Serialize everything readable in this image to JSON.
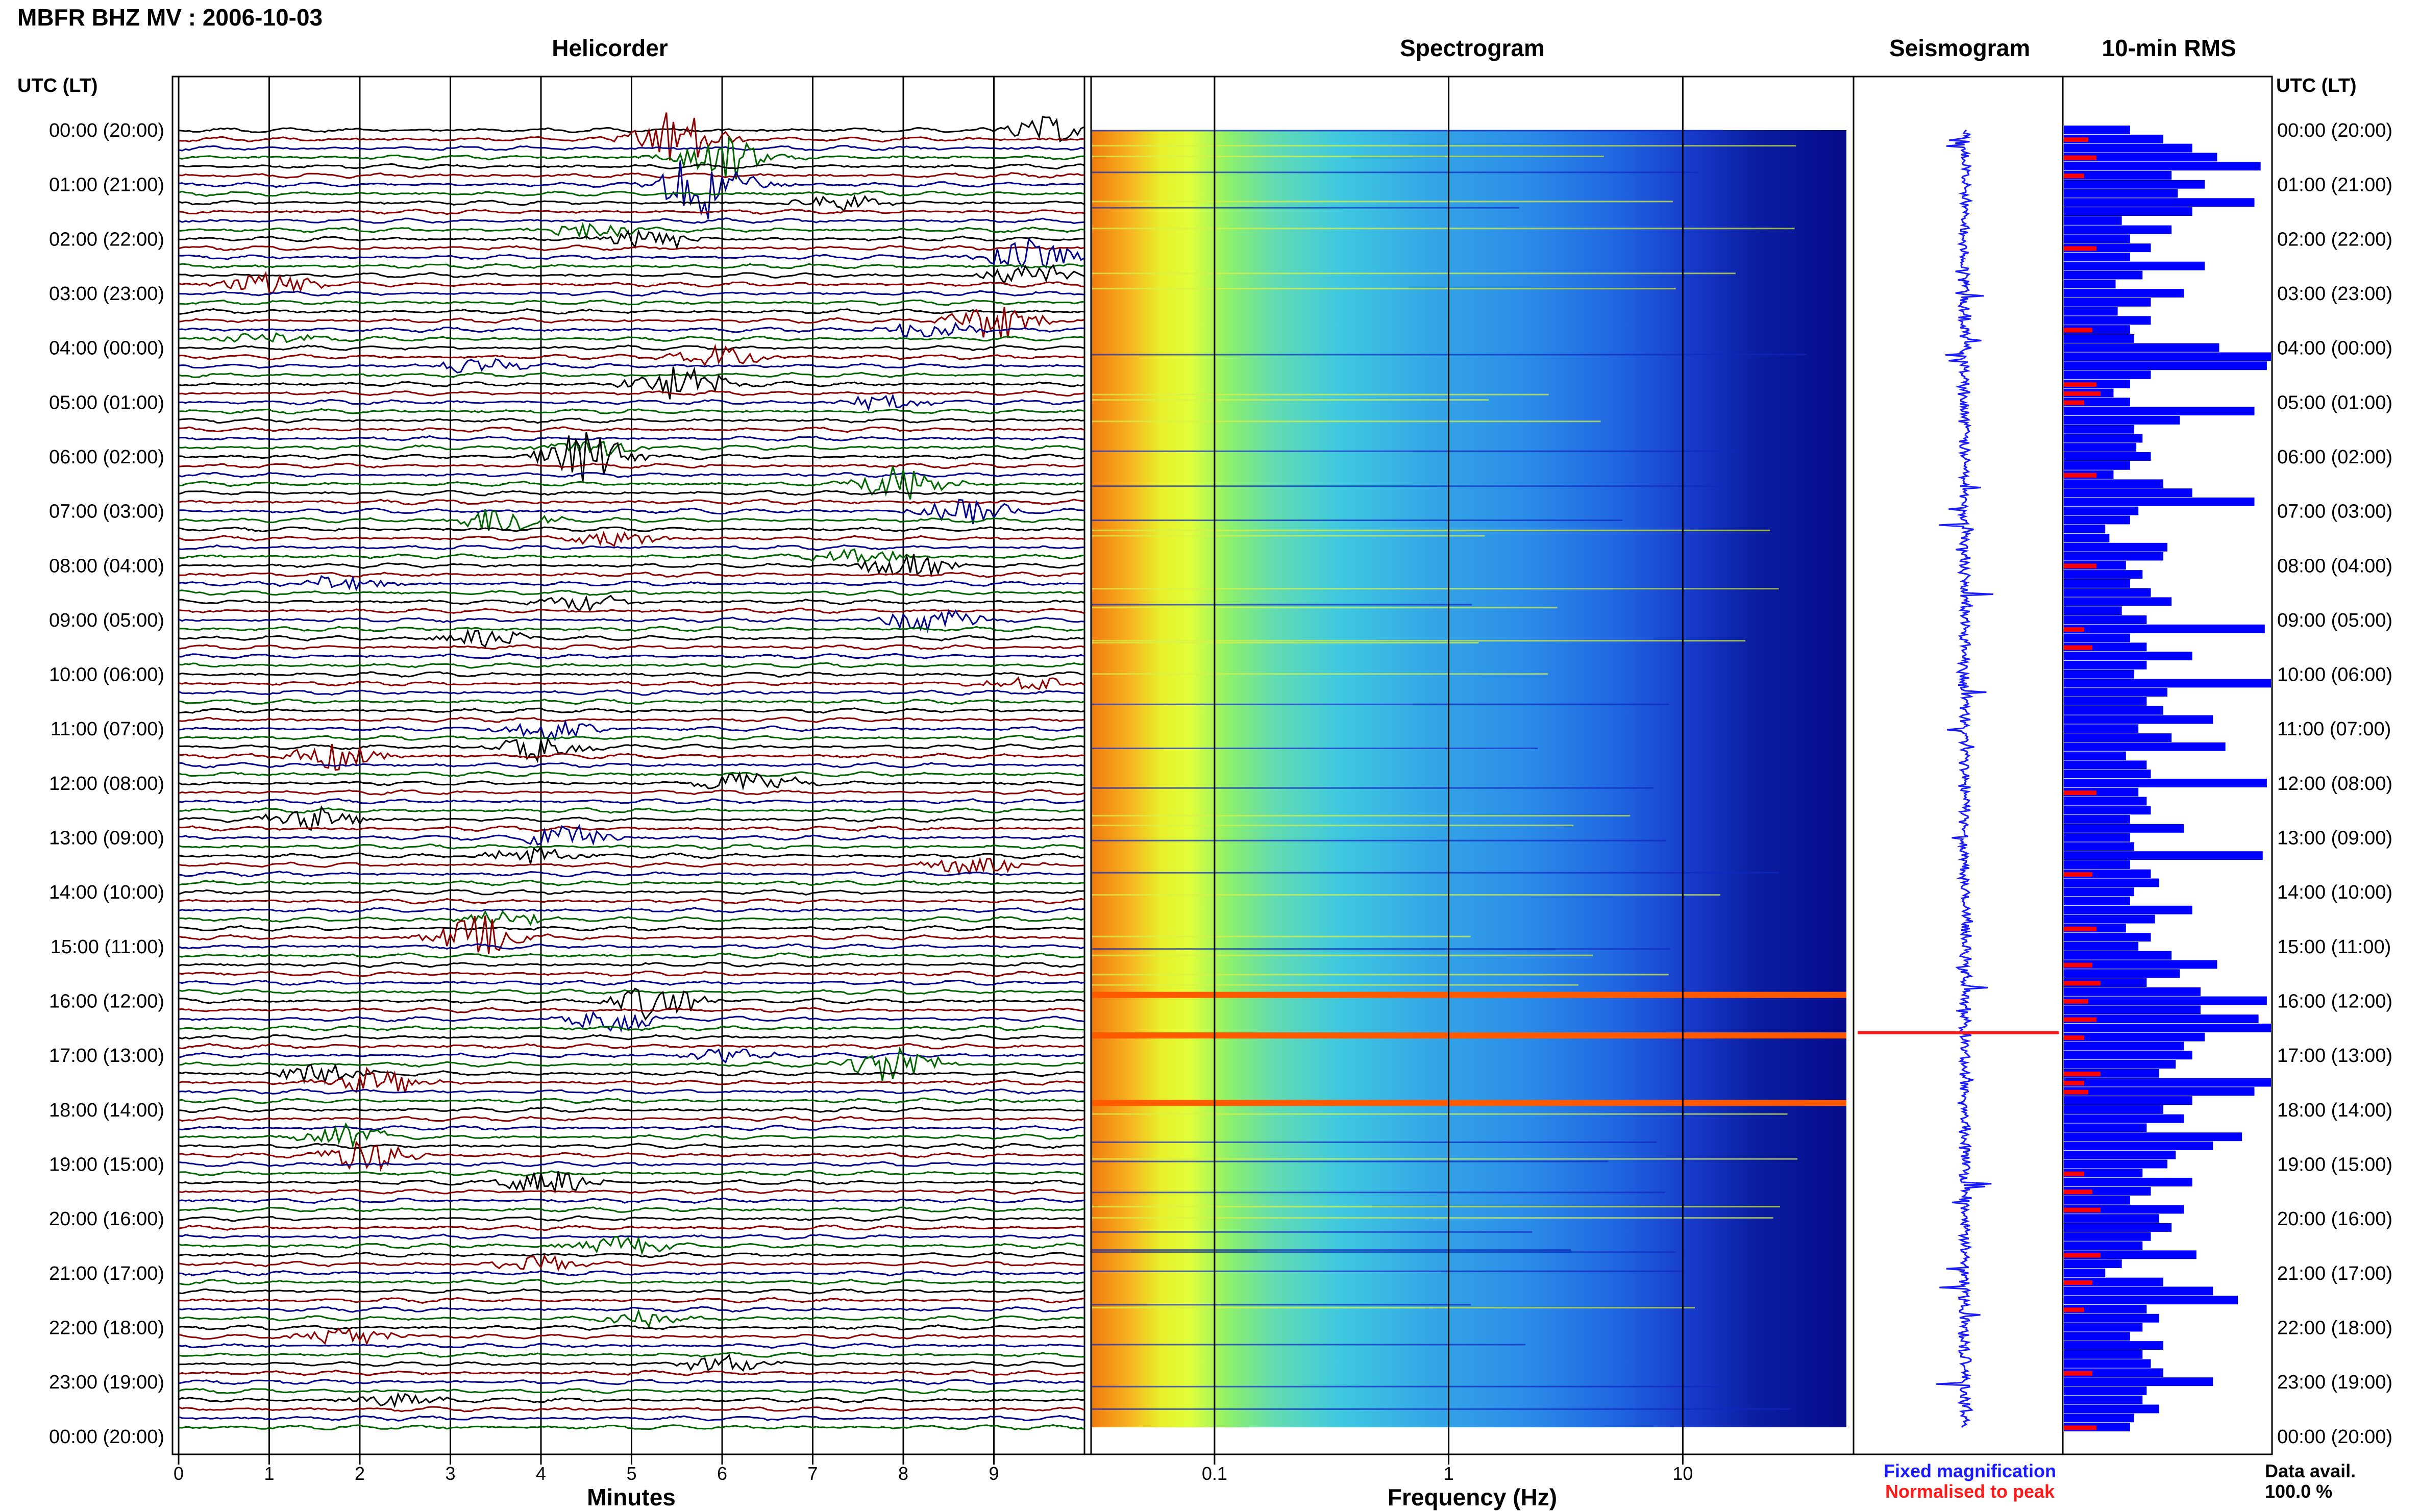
{
  "title": "MBFR BHZ MV : 2006-10-03",
  "panel_titles": {
    "helicorder": "Helicorder",
    "spectrogram": "Spectrogram",
    "seismogram": "Seismogram",
    "rms": "10-min RMS"
  },
  "axis_header_left": "UTC (LT)",
  "axis_header_right": "UTC (LT)",
  "time_labels": [
    "00:00 (20:00)",
    "01:00 (21:00)",
    "02:00 (22:00)",
    "03:00 (23:00)",
    "04:00 (00:00)",
    "05:00 (01:00)",
    "06:00 (02:00)",
    "07:00 (03:00)",
    "08:00 (04:00)",
    "09:00 (05:00)",
    "10:00 (06:00)",
    "11:00 (07:00)",
    "12:00 (08:00)",
    "13:00 (09:00)",
    "14:00 (10:00)",
    "15:00 (11:00)",
    "16:00 (12:00)",
    "17:00 (13:00)",
    "18:00 (14:00)",
    "19:00 (15:00)",
    "20:00 (16:00)",
    "21:00 (17:00)",
    "22:00 (18:00)",
    "23:00 (19:00)",
    "00:00 (20:00)"
  ],
  "minutes_axis": {
    "label": "Minutes",
    "ticks": [
      "0",
      "1",
      "2",
      "3",
      "4",
      "5",
      "6",
      "7",
      "8",
      "9"
    ]
  },
  "frequency_axis": {
    "label": "Frequency (Hz)",
    "ticks": [
      "0.1",
      "1",
      "10"
    ]
  },
  "legend": {
    "fixed": "Fixed magnification",
    "normalised": "Normalised to peak",
    "fixed_color": "#1a1aff",
    "normalised_color": "#ff1a1a"
  },
  "data_avail": {
    "label": "Data avail.",
    "value": "100.0 %"
  },
  "colors": {
    "trace_colors": [
      "#000000",
      "#8b0000",
      "#00008b",
      "#006400"
    ],
    "rms_blue": "#0000ff",
    "rms_red": "#ff0000"
  },
  "chart_data": {
    "type": "heatmap",
    "description_note": "",
    "helicorder": {
      "x_range_minutes": [
        0,
        10
      ],
      "rows_per_hour": 6,
      "total_rows": 144,
      "events": [
        {
          "row": 0,
          "minute": 9.6,
          "amp": 1.6
        },
        {
          "row": 1,
          "minute": 5.5,
          "amp": 3.5
        },
        {
          "row": 3,
          "minute": 6.0,
          "amp": 3.0
        },
        {
          "row": 6,
          "minute": 5.8,
          "amp": 4.2
        },
        {
          "row": 8,
          "minute": 7.3,
          "amp": 1.0
        },
        {
          "row": 11,
          "minute": 4.5,
          "amp": 1.2
        },
        {
          "row": 12,
          "minute": 5.2,
          "amp": 1.4
        },
        {
          "row": 14,
          "minute": 9.4,
          "amp": 2.2
        },
        {
          "row": 16,
          "minute": 9.4,
          "amp": 1.6
        },
        {
          "row": 17,
          "minute": 1.0,
          "amp": 1.6
        },
        {
          "row": 21,
          "minute": 9.0,
          "amp": 2.4
        },
        {
          "row": 22,
          "minute": 8.3,
          "amp": 1.4
        },
        {
          "row": 23,
          "minute": 1.0,
          "amp": 0.8
        },
        {
          "row": 25,
          "minute": 6.0,
          "amp": 1.4
        },
        {
          "row": 26,
          "minute": 3.3,
          "amp": 1.0
        },
        {
          "row": 28,
          "minute": 5.5,
          "amp": 2.4
        },
        {
          "row": 30,
          "minute": 7.8,
          "amp": 0.9
        },
        {
          "row": 35,
          "minute": 4.6,
          "amp": 1.2
        },
        {
          "row": 36,
          "minute": 4.5,
          "amp": 3.2
        },
        {
          "row": 39,
          "minute": 8.0,
          "amp": 2.2
        },
        {
          "row": 42,
          "minute": 8.7,
          "amp": 1.6
        },
        {
          "row": 43,
          "minute": 3.6,
          "amp": 2.0
        },
        {
          "row": 45,
          "minute": 4.8,
          "amp": 1.0
        },
        {
          "row": 47,
          "minute": 7.5,
          "amp": 1.0
        },
        {
          "row": 48,
          "minute": 8.0,
          "amp": 1.6
        },
        {
          "row": 50,
          "minute": 1.8,
          "amp": 1.0
        },
        {
          "row": 52,
          "minute": 4.5,
          "amp": 1.0
        },
        {
          "row": 54,
          "minute": 8.3,
          "amp": 1.8
        },
        {
          "row": 56,
          "minute": 3.4,
          "amp": 1.2
        },
        {
          "row": 61,
          "minute": 9.4,
          "amp": 0.9
        },
        {
          "row": 66,
          "minute": 4.1,
          "amp": 1.4
        },
        {
          "row": 68,
          "minute": 4.0,
          "amp": 1.6
        },
        {
          "row": 69,
          "minute": 1.7,
          "amp": 1.6
        },
        {
          "row": 72,
          "minute": 6.3,
          "amp": 1.6
        },
        {
          "row": 76,
          "minute": 1.5,
          "amp": 1.4
        },
        {
          "row": 78,
          "minute": 4.3,
          "amp": 1.5
        },
        {
          "row": 80,
          "minute": 3.9,
          "amp": 1.2
        },
        {
          "row": 81,
          "minute": 8.8,
          "amp": 1.2
        },
        {
          "row": 87,
          "minute": 3.5,
          "amp": 1.2
        },
        {
          "row": 89,
          "minute": 3.3,
          "amp": 2.6
        },
        {
          "row": 96,
          "minute": 5.3,
          "amp": 2.4
        },
        {
          "row": 98,
          "minute": 4.8,
          "amp": 1.6
        },
        {
          "row": 102,
          "minute": 6.1,
          "amp": 1.0
        },
        {
          "row": 103,
          "minute": 7.9,
          "amp": 2.6
        },
        {
          "row": 104,
          "minute": 1.5,
          "amp": 1.4
        },
        {
          "row": 105,
          "minute": 2.2,
          "amp": 1.6
        },
        {
          "row": 111,
          "minute": 1.9,
          "amp": 1.6
        },
        {
          "row": 113,
          "minute": 2.1,
          "amp": 2.0
        },
        {
          "row": 116,
          "minute": 4.1,
          "amp": 1.6
        },
        {
          "row": 123,
          "minute": 4.9,
          "amp": 1.2
        },
        {
          "row": 125,
          "minute": 3.9,
          "amp": 1.2
        },
        {
          "row": 131,
          "minute": 5.2,
          "amp": 1.0
        },
        {
          "row": 133,
          "minute": 1.9,
          "amp": 1.4
        },
        {
          "row": 136,
          "minute": 6.0,
          "amp": 1.0
        },
        {
          "row": 140,
          "minute": 2.4,
          "amp": 1.0
        }
      ]
    },
    "spectrogram": {
      "x_scale": "log",
      "x_range_hz": [
        0.03,
        50
      ],
      "y_range_hours": [
        0,
        24
      ],
      "strong_band_hours": [
        16.0,
        16.75,
        18.0
      ]
    },
    "rms": {
      "values": [
        0.32,
        0.48,
        0.62,
        0.74,
        0.95,
        0.52,
        0.68,
        0.55,
        0.92,
        0.62,
        0.28,
        0.52,
        0.32,
        0.42,
        0.32,
        0.68,
        0.38,
        0.25,
        0.58,
        0.42,
        0.26,
        0.42,
        0.32,
        0.34,
        0.75,
        1.0,
        0.98,
        0.42,
        0.32,
        0.24,
        0.32,
        0.92,
        0.56,
        0.34,
        0.38,
        0.35,
        0.42,
        0.32,
        0.24,
        0.48,
        0.62,
        0.92,
        0.36,
        0.32,
        0.2,
        0.22,
        0.5,
        0.48,
        0.3,
        0.38,
        0.32,
        0.42,
        0.52,
        0.28,
        0.4,
        0.97,
        0.32,
        0.4,
        0.62,
        0.4,
        0.34,
        1.0,
        0.5,
        0.4,
        0.48,
        0.72,
        0.36,
        0.52,
        0.78,
        0.3,
        0.4,
        0.42,
        0.98,
        0.36,
        0.4,
        0.42,
        0.32,
        0.58,
        0.32,
        0.34,
        0.96,
        0.32,
        0.42,
        0.46,
        0.34,
        0.32,
        0.62,
        0.44,
        0.3,
        0.42,
        0.36,
        0.52,
        0.74,
        0.56,
        0.4,
        0.66,
        0.98,
        0.66,
        0.94,
        1.0,
        0.68,
        0.58,
        0.62,
        0.54,
        0.46,
        1.0,
        0.92,
        0.62,
        0.48,
        0.58,
        0.4,
        0.86,
        0.72,
        0.54,
        0.5,
        0.38,
        0.62,
        0.42,
        0.32,
        0.58,
        0.46,
        0.52,
        0.42,
        0.38,
        0.64,
        0.28,
        0.2,
        0.48,
        0.72,
        0.84,
        0.4,
        0.46,
        0.38,
        0.32,
        0.48,
        0.38,
        0.42,
        0.48,
        0.72,
        0.4,
        0.38,
        0.46,
        0.34,
        0.32
      ],
      "red_rows": [
        1,
        3,
        5,
        13,
        22,
        28,
        29,
        30,
        38,
        48,
        55,
        57,
        73,
        82,
        88,
        92,
        94,
        96,
        98,
        100,
        104,
        105,
        106,
        115,
        117,
        119,
        124,
        127,
        130,
        137,
        143
      ]
    }
  }
}
